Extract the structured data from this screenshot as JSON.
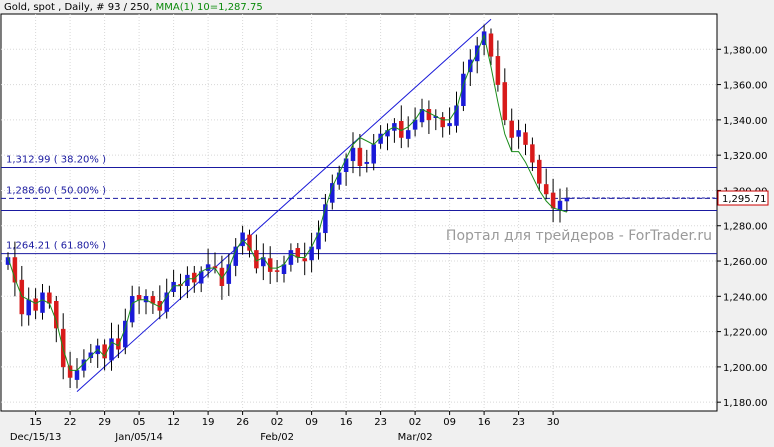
{
  "header": {
    "instrument": "Gold, spot , Daily, # 93 / 250,",
    "indicator": "MMA(1) 10=1,287.75"
  },
  "watermark": "Портал для трейдеров - ForTrader.ru",
  "colors": {
    "background": "#f0f0f0",
    "plot": "#ffffff",
    "grid": "#d8d8d8",
    "up": "#1a1ad8",
    "down": "#d81a1a",
    "ma": "#1a8c1a",
    "fib": "#1a1aa0",
    "trend": "#1a1ad8"
  },
  "chart_data": {
    "type": "candlestick",
    "ylim": [
      1175,
      1400
    ],
    "y_ticks": [
      "1,180.00",
      "1,200.00",
      "1,220.00",
      "1,240.00",
      "1,260.00",
      "1,280.00",
      "1,300.00",
      "1,320.00",
      "1,340.00",
      "1,360.00",
      "1,380.00"
    ],
    "y_tick_values": [
      1180,
      1200,
      1220,
      1240,
      1260,
      1280,
      1300,
      1320,
      1340,
      1360,
      1380
    ],
    "x_ticks": [
      {
        "label": "15",
        "index": 4
      },
      {
        "label": "22",
        "index": 9
      },
      {
        "label": "29",
        "index": 14
      },
      {
        "label": "05",
        "index": 19
      },
      {
        "label": "12",
        "index": 24
      },
      {
        "label": "19",
        "index": 29
      },
      {
        "label": "26",
        "index": 34
      },
      {
        "label": "02",
        "index": 39
      },
      {
        "label": "09",
        "index": 44
      },
      {
        "label": "16",
        "index": 49
      },
      {
        "label": "23",
        "index": 54
      },
      {
        "label": "02",
        "index": 59
      },
      {
        "label": "09",
        "index": 64
      },
      {
        "label": "16",
        "index": 69
      },
      {
        "label": "23",
        "index": 74
      },
      {
        "label": "30",
        "index": 79
      }
    ],
    "x_month_labels": [
      {
        "label": "Dec/15/13",
        "index": 4
      },
      {
        "label": "Jan/05/14",
        "index": 19
      },
      {
        "label": "Feb/02",
        "index": 39
      },
      {
        "label": "Mar/02",
        "index": 59
      }
    ],
    "close": [
      1262,
      1248,
      1230,
      1238,
      1232,
      1242,
      1236,
      1222,
      1200,
      1194,
      1198,
      1204,
      1208,
      1212,
      1205,
      1216,
      1210,
      1226,
      1240,
      1238,
      1240,
      1236,
      1232,
      1242,
      1248,
      1246,
      1252,
      1248,
      1254,
      1258,
      1256,
      1246,
      1258,
      1268,
      1276,
      1266,
      1256,
      1262,
      1254,
      1254,
      1258,
      1266,
      1262,
      1260,
      1268,
      1276,
      1292,
      1304,
      1310,
      1318,
      1324,
      1314,
      1316,
      1326,
      1332,
      1334,
      1338,
      1330,
      1334,
      1340,
      1346,
      1340,
      1342,
      1336,
      1338,
      1348,
      1366,
      1374,
      1382,
      1390,
      1376,
      1360,
      1340,
      1330,
      1334,
      1326,
      1316,
      1304,
      1298,
      1290,
      1294,
      1295.71
    ],
    "ma": [
      1262,
      1250,
      1240,
      1238,
      1236,
      1238,
      1236,
      1226,
      1210,
      1198,
      1198,
      1202,
      1206,
      1210,
      1206,
      1214,
      1212,
      1222,
      1236,
      1238,
      1238,
      1236,
      1234,
      1240,
      1246,
      1246,
      1250,
      1250,
      1254,
      1256,
      1256,
      1250,
      1256,
      1266,
      1272,
      1268,
      1260,
      1262,
      1256,
      1256,
      1258,
      1264,
      1262,
      1262,
      1268,
      1276,
      1290,
      1302,
      1310,
      1318,
      1326,
      1330,
      1328,
      1326,
      1330,
      1334,
      1336,
      1334,
      1336,
      1340,
      1346,
      1344,
      1342,
      1340,
      1340,
      1346,
      1360,
      1370,
      1378,
      1388,
      1370,
      1350,
      1332,
      1322,
      1322,
      1316,
      1308,
      1300,
      1294,
      1290,
      1289,
      1287.75
    ],
    "current_price": "1,295.71",
    "current_value": 1295.71,
    "fib_levels": [
      {
        "label": "1,312.99 ( 38.20% )",
        "value": 1312.99,
        "dashed": false
      },
      {
        "label": "1,288.60 ( 50.00% )",
        "value": 1295.5,
        "dashed": true
      },
      {
        "label": "",
        "value": 1288.6,
        "dashed": false
      },
      {
        "label": "1,264.21 ( 61.80% )",
        "value": 1264.21,
        "dashed": false
      }
    ],
    "trendline": {
      "from": {
        "index": 10,
        "value": 1186
      },
      "to": {
        "index": 70,
        "value": 1397
      }
    }
  }
}
